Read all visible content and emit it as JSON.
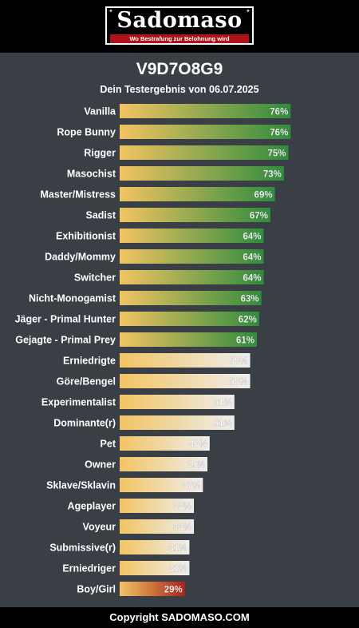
{
  "brand": {
    "logo_text": "Sadomaso",
    "tagline": "Wo Bestrafung zur Belohnung wird"
  },
  "result": {
    "code": "V9D7O8G9",
    "subtitle": "Dein Testergebnis von 06.07.2025"
  },
  "colors": {
    "background": "#3a3e45",
    "header": "#000000",
    "bar_start": "#f2c462",
    "bar_high_end": "#2f8c3e",
    "bar_mid_end": "#eeeeee",
    "bar_low_end": "#a8241b",
    "logo_red": "#b1121a"
  },
  "chart_data": {
    "type": "bar",
    "orientation": "horizontal",
    "unit": "%",
    "xlim": [
      0,
      100
    ],
    "grid": false,
    "categories": [
      "Vanilla",
      "Rope Bunny",
      "Rigger",
      "Masochist",
      "Master/Mistress",
      "Sadist",
      "Exhibitionist",
      "Daddy/Mommy",
      "Switcher",
      "Nicht-Monogamist",
      "Jäger - Primal Hunter",
      "Gejagte - Primal Prey",
      "Erniedrigte",
      "Göre/Bengel",
      "Experimentalist",
      "Dominante(r)",
      "Pet",
      "Owner",
      "Sklave/Sklavin",
      "Ageplayer",
      "Voyeur",
      "Submissive(r)",
      "Erniedriger",
      "Boy/Girl"
    ],
    "values": [
      76,
      76,
      75,
      73,
      69,
      67,
      64,
      64,
      64,
      63,
      62,
      61,
      58,
      58,
      51,
      51,
      40,
      39,
      37,
      33,
      33,
      31,
      31,
      29
    ],
    "labels": [
      "76%",
      "76%",
      "75%",
      "73%",
      "69%",
      "67%",
      "64%",
      "64%",
      "64%",
      "63%",
      "62%",
      "61%",
      "58%",
      "58%",
      "51%",
      "51%",
      "40%",
      "39%",
      "37%",
      "33%",
      "33%",
      "31%",
      "31%",
      "29%"
    ]
  },
  "footer": {
    "copyright": "Copyright SADOMASO.COM"
  }
}
